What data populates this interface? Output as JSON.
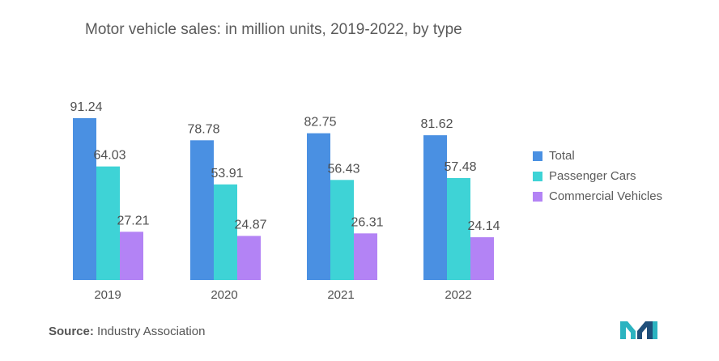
{
  "chart_data": {
    "type": "bar",
    "title": "Motor vehicle sales: in million units, 2019-2022, by type",
    "categories": [
      "2019",
      "2020",
      "2021",
      "2022"
    ],
    "series": [
      {
        "name": "Total",
        "color": "#4a90e2",
        "values": [
          91.24,
          78.78,
          82.75,
          81.62
        ]
      },
      {
        "name": "Passenger Cars",
        "color": "#3ed3d6",
        "values": [
          64.03,
          53.91,
          56.43,
          57.48
        ]
      },
      {
        "name": "Commercial Vehicles",
        "color": "#b383f5",
        "values": [
          27.21,
          24.87,
          26.31,
          24.14
        ]
      }
    ],
    "xlabel": "",
    "ylabel": "",
    "ylim": [
      0,
      91.24
    ],
    "grid": false,
    "legend_position": "right"
  },
  "source": {
    "label": "Source:",
    "text": "Industry Association"
  },
  "logo": {
    "icon": "mordor-intelligence-logo-icon",
    "colors": [
      "#2bb3c0",
      "#1f4f7a"
    ]
  }
}
